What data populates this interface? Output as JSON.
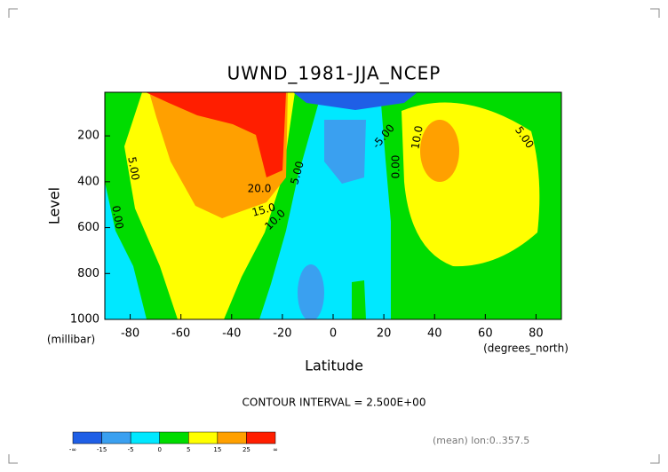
{
  "chart_data": {
    "type": "contour",
    "title": "UWND_1981-JJA_NCEP",
    "x_label": "Latitude",
    "x_unit": "(degrees_north)",
    "y_label": "Level",
    "y_unit": "(millibar)",
    "xlim": [
      -90,
      90
    ],
    "xticks": [
      -80,
      -60,
      -40,
      -20,
      0,
      20,
      40,
      60,
      80
    ],
    "ylim": [
      1000,
      10
    ],
    "yticks": [
      200,
      400,
      600,
      800,
      1000
    ],
    "contour_labels": [
      {
        "value": 5,
        "label": "5.00"
      },
      {
        "value": 0,
        "label": "0.00"
      },
      {
        "value": 20,
        "label": "20.0"
      },
      {
        "value": 15,
        "label": "15.0"
      },
      {
        "value": 10,
        "label": "10.0"
      },
      {
        "value": 5,
        "label": "5.00"
      },
      {
        "value": -5,
        "label": "-5.00"
      },
      {
        "value": 0,
        "label": "0.00"
      },
      {
        "value": 10,
        "label": "10.0"
      },
      {
        "value": 5,
        "label": "5.00"
      }
    ],
    "contour_interval": "CONTOUR INTERVAL = 2.500E+00",
    "colorbar": {
      "labels": [
        "-∞",
        -15,
        -5,
        0,
        5,
        15,
        25,
        "∞"
      ],
      "colors": [
        "#1f5fe6",
        "#3aa0f0",
        "#00e8ff",
        "#00dc00",
        "#ffff00",
        "#ffa000",
        "#ff1e00"
      ]
    },
    "footnote": "(mean) lon:0..357.5"
  }
}
